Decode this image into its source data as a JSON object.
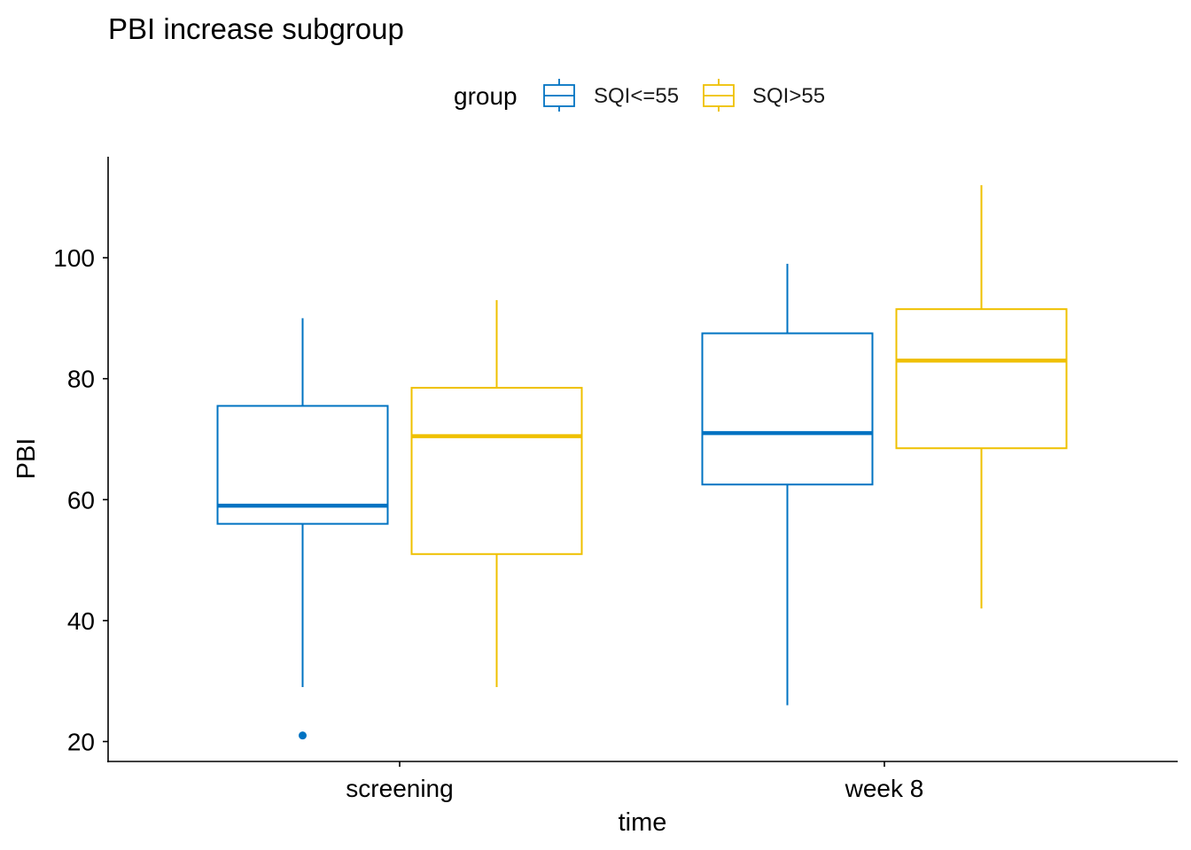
{
  "chart_data": {
    "type": "boxplot",
    "title": "PBI increase subgroup",
    "xlabel": "time",
    "ylabel": "PBI",
    "ylim": [
      15,
      116
    ],
    "yticks": [
      20,
      40,
      60,
      80,
      100
    ],
    "categories": [
      "screening",
      "week 8"
    ],
    "grid": false,
    "legend": {
      "title": "group",
      "position": "top"
    },
    "series": [
      {
        "name": "SQI<=55",
        "color": "#0073C2",
        "boxes": [
          {
            "category": "screening",
            "whisker_low": 29,
            "q1": 56,
            "median": 59,
            "q3": 75.5,
            "whisker_high": 90,
            "outliers": [
              21
            ]
          },
          {
            "category": "week 8",
            "whisker_low": 26,
            "q1": 62.5,
            "median": 71,
            "q3": 87.5,
            "whisker_high": 99,
            "outliers": []
          }
        ]
      },
      {
        "name": "SQI>55",
        "color": "#EFC000",
        "boxes": [
          {
            "category": "screening",
            "whisker_low": 29,
            "q1": 51,
            "median": 70.5,
            "q3": 78.5,
            "whisker_high": 93,
            "outliers": []
          },
          {
            "category": "week 8",
            "whisker_low": 42,
            "q1": 68.5,
            "median": 83,
            "q3": 91.5,
            "whisker_high": 112,
            "outliers": []
          }
        ]
      }
    ]
  }
}
